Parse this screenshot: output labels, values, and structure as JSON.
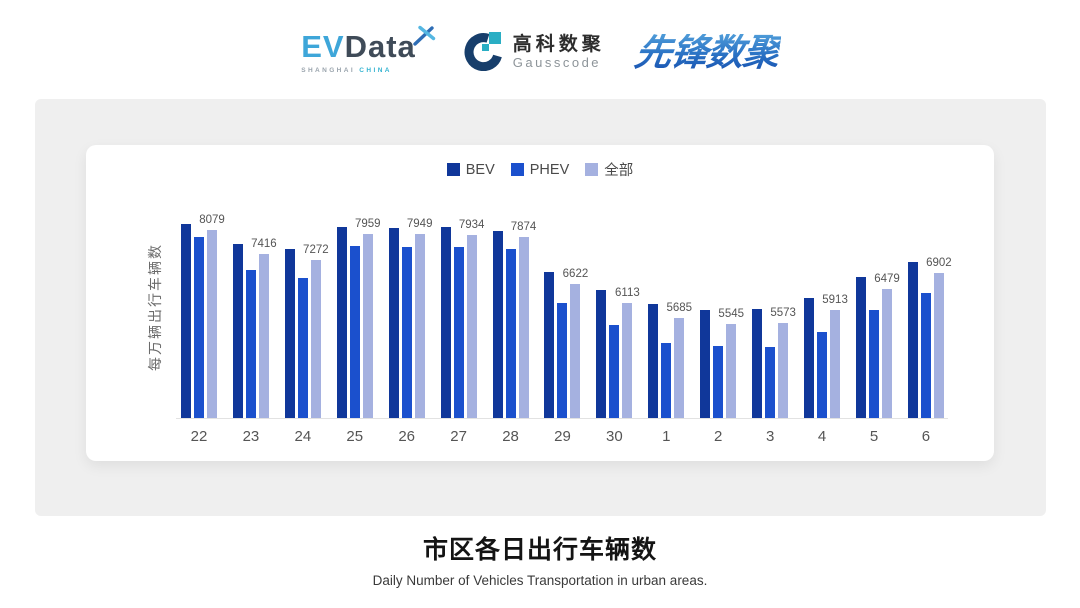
{
  "header": {
    "evdata": {
      "ev": "EV",
      "data": "Data",
      "sub_left": "SHANGHAI",
      "sub_right": "CHINA"
    },
    "gausscode": {
      "cn": "高科数聚",
      "en": "Gausscode"
    },
    "xianfeng": {
      "text": "先锋数聚"
    }
  },
  "chart_data": {
    "type": "bar",
    "title": "市区各日出行车辆数",
    "subtitle": "Daily Number of Vehicles Transportation in urban areas.",
    "ylabel": "每万辆出行车辆数",
    "xlabel": "",
    "categories": [
      "22",
      "23",
      "24",
      "25",
      "26",
      "27",
      "28",
      "29",
      "30",
      "1",
      "2",
      "3",
      "4",
      "5",
      "6"
    ],
    "series": [
      {
        "name": "BEV",
        "color": "#10379a",
        "values": [
          8240,
          7680,
          7555,
          8150,
          8135,
          8150,
          8035,
          6930,
          6450,
          6070,
          5905,
          5935,
          6250,
          6795,
          7220
        ]
      },
      {
        "name": "PHEV",
        "color": "#1b50cd",
        "values": [
          7870,
          6995,
          6765,
          7650,
          7625,
          7610,
          7545,
          6090,
          5500,
          5030,
          4935,
          4910,
          5315,
          5915,
          6370
        ]
      },
      {
        "name": "全部",
        "color": "#a5b1e0",
        "values": [
          8079,
          7416,
          7272,
          7959,
          7949,
          7934,
          7874,
          6622,
          6113,
          5685,
          5545,
          5573,
          5913,
          6479,
          6902
        ]
      }
    ],
    "data_labels": [
      8079,
      7416,
      7272,
      7959,
      7949,
      7934,
      7874,
      6622,
      6113,
      5685,
      5545,
      5573,
      5913,
      6479,
      6902
    ],
    "labeled_series": "全部",
    "ylim": [
      3000,
      8500
    ],
    "legend_position": "top",
    "grid": false,
    "colors": {
      "axis_line": "#e2e2e2",
      "tick_text": "#555555",
      "label_text": "#555555"
    }
  }
}
